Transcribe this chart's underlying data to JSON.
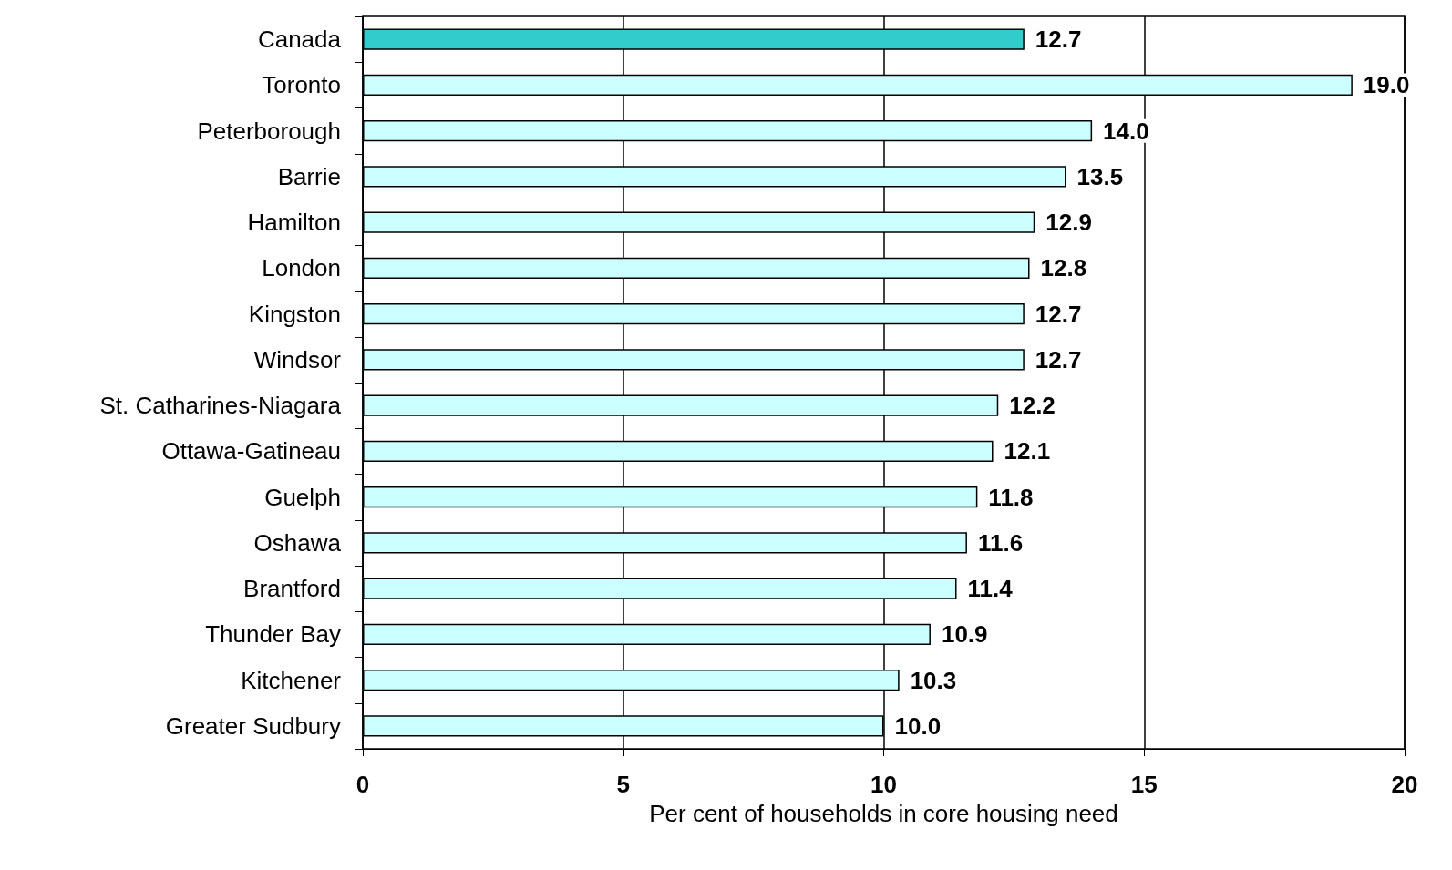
{
  "chart_data": {
    "type": "bar",
    "orientation": "horizontal",
    "xlabel": "Per cent of households in core housing need",
    "categories": [
      "Canada",
      "Toronto",
      "Peterborough",
      "Barrie",
      "Hamilton",
      "London",
      "Kingston",
      "Windsor",
      "St. Catharines-Niagara",
      "Ottawa-Gatineau",
      "Guelph",
      "Oshawa",
      "Brantford",
      "Thunder Bay",
      "Kitchener",
      "Greater Sudbury"
    ],
    "values": [
      12.7,
      19.0,
      14.0,
      13.5,
      12.9,
      12.8,
      12.7,
      12.7,
      12.2,
      12.1,
      11.8,
      11.6,
      11.4,
      10.9,
      10.3,
      10.0
    ],
    "value_labels": [
      "12.7",
      "19.0",
      "14.0",
      "13.5",
      "12.9",
      "12.8",
      "12.7",
      "12.7",
      "12.2",
      "12.1",
      "11.8",
      "11.6",
      "11.4",
      "10.9",
      "10.3",
      "10.0"
    ],
    "colors": [
      "#33cccc",
      "#ccffff",
      "#ccffff",
      "#ccffff",
      "#ccffff",
      "#ccffff",
      "#ccffff",
      "#ccffff",
      "#ccffff",
      "#ccffff",
      "#ccffff",
      "#ccffff",
      "#ccffff",
      "#ccffff",
      "#ccffff",
      "#ccffff"
    ],
    "xlim": [
      0,
      20
    ],
    "xticks": [
      0,
      5,
      10,
      15,
      20
    ],
    "grid": "x"
  }
}
